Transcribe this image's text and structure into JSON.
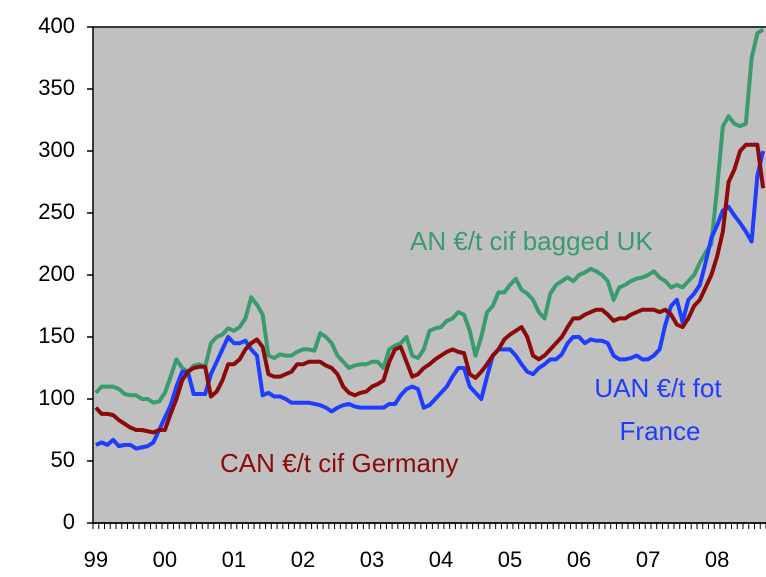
{
  "chart_data": {
    "type": "line",
    "categories": [
      "99",
      null,
      null,
      null,
      null,
      null,
      null,
      null,
      null,
      null,
      null,
      null,
      "00",
      null,
      null,
      null,
      null,
      null,
      null,
      null,
      null,
      null,
      null,
      null,
      "01",
      null,
      null,
      null,
      null,
      null,
      null,
      null,
      null,
      null,
      null,
      null,
      "02",
      null,
      null,
      null,
      null,
      null,
      null,
      null,
      null,
      null,
      null,
      null,
      "03",
      null,
      null,
      null,
      null,
      null,
      null,
      null,
      null,
      null,
      null,
      null,
      "04",
      null,
      null,
      null,
      null,
      null,
      null,
      null,
      null,
      null,
      null,
      null,
      "05",
      null,
      null,
      null,
      null,
      null,
      null,
      null,
      null,
      null,
      null,
      null,
      "06",
      null,
      null,
      null,
      null,
      null,
      null,
      null,
      null,
      null,
      null,
      null,
      "07",
      null,
      null,
      null,
      null,
      null,
      null,
      null,
      null,
      null,
      null,
      null,
      "08",
      null,
      null,
      null,
      null,
      null,
      null,
      null,
      null
    ],
    "series": [
      {
        "name": "AN €/t cif bagged UK",
        "color": "#3a9b6e",
        "values": [
          105,
          110,
          110,
          110,
          108,
          104,
          103,
          103,
          100,
          100,
          97,
          98,
          105,
          118,
          132,
          125,
          122,
          127,
          128,
          126,
          145,
          150,
          152,
          157,
          155,
          158,
          165,
          182,
          176,
          168,
          135,
          133,
          136,
          135,
          135,
          138,
          140,
          140,
          139,
          153,
          150,
          145,
          135,
          130,
          125,
          127,
          128,
          128,
          130,
          130,
          125,
          140,
          143,
          145,
          150,
          135,
          133,
          140,
          155,
          157,
          158,
          163,
          165,
          170,
          168,
          155,
          135,
          150,
          170,
          175,
          186,
          186,
          192,
          197,
          188,
          185,
          180,
          170,
          165,
          185,
          192,
          195,
          198,
          195,
          200,
          202,
          205,
          203,
          200,
          195,
          180,
          190,
          192,
          195,
          197,
          198,
          200,
          203,
          198,
          195,
          190,
          192,
          190,
          195,
          200,
          210,
          218,
          225,
          270,
          320,
          328,
          322,
          320,
          322,
          375,
          395,
          398
        ]
      },
      {
        "name": "UAN €/t fot France",
        "color": "#1f3dff",
        "values": [
          63,
          65,
          63,
          67,
          62,
          63,
          63,
          60,
          61,
          62,
          65,
          75,
          85,
          95,
          110,
          122,
          122,
          104,
          104,
          104,
          120,
          130,
          140,
          150,
          145,
          145,
          147,
          140,
          135,
          103,
          105,
          102,
          102,
          100,
          97,
          97,
          97,
          97,
          96,
          95,
          93,
          90,
          93,
          95,
          96,
          94,
          93,
          93,
          93,
          93,
          93,
          96,
          96,
          103,
          108,
          110,
          108,
          93,
          95,
          100,
          105,
          110,
          118,
          125,
          125,
          110,
          105,
          100,
          118,
          135,
          140,
          140,
          140,
          135,
          128,
          122,
          120,
          125,
          128,
          132,
          132,
          136,
          145,
          150,
          150,
          145,
          148,
          147,
          147,
          145,
          135,
          132,
          132,
          133,
          135,
          132,
          132,
          135,
          140,
          160,
          175,
          180,
          162,
          180,
          185,
          192,
          210,
          230,
          240,
          252,
          255,
          248,
          242,
          235,
          227,
          280,
          300
        ]
      },
      {
        "name": "CAN €/t cif Germany",
        "color": "#8b0a0a",
        "values": [
          93,
          88,
          88,
          87,
          83,
          80,
          77,
          75,
          75,
          74,
          73,
          75,
          75,
          88,
          100,
          115,
          122,
          125,
          126,
          126,
          102,
          106,
          115,
          128,
          128,
          132,
          140,
          145,
          148,
          142,
          120,
          118,
          118,
          120,
          122,
          128,
          128,
          130,
          130,
          130,
          127,
          125,
          120,
          110,
          105,
          103,
          105,
          106,
          110,
          112,
          115,
          130,
          140,
          142,
          130,
          118,
          120,
          125,
          128,
          132,
          135,
          138,
          140,
          138,
          137,
          120,
          117,
          122,
          128,
          135,
          140,
          148,
          152,
          155,
          158,
          150,
          135,
          132,
          135,
          140,
          145,
          150,
          158,
          165,
          165,
          168,
          170,
          172,
          172,
          168,
          163,
          165,
          165,
          168,
          170,
          172,
          172,
          172,
          170,
          172,
          168,
          160,
          158,
          165,
          175,
          180,
          190,
          200,
          215,
          235,
          275,
          285,
          300,
          305,
          305,
          305,
          270
        ]
      }
    ],
    "annotations": [
      {
        "text": "AN €/t cif bagged UK",
        "color": "#3a9b6e"
      },
      {
        "text": "UAN €/t fot",
        "color": "#1f3dff"
      },
      {
        "text": "France",
        "color": "#1f3dff"
      },
      {
        "text": "CAN €/t cif Germany",
        "color": "#8b0a0a"
      }
    ],
    "ylim": [
      0,
      400
    ],
    "yticks": [
      0,
      50,
      100,
      150,
      200,
      250,
      300,
      350,
      400
    ]
  }
}
